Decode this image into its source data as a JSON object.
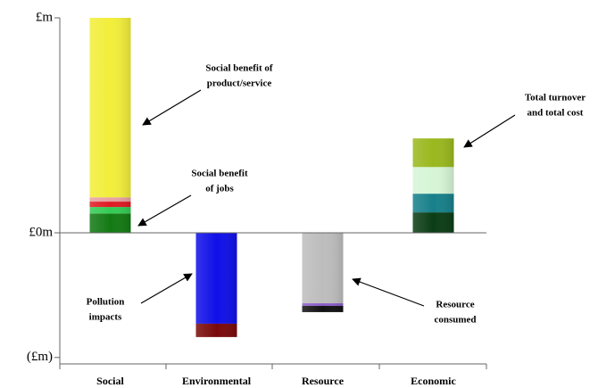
{
  "chart_data": {
    "type": "stacked-bar",
    "categories": [
      "Social",
      "Environmental",
      "Resource",
      "Economic"
    ],
    "segments": [
      [
        {
          "value": 0.9,
          "color": "#137a13"
        },
        {
          "value": 0.3,
          "color": "#33cc55"
        },
        {
          "value": 0.25,
          "color": "#e01b24"
        },
        {
          "value": 0.2,
          "color": "#e8a0a0"
        },
        {
          "value": 8.35,
          "color": "#f2ee3a"
        }
      ],
      [
        {
          "value": -4.23,
          "color": "#1010e8"
        },
        {
          "value": -0.62,
          "color": "#7a0a0a"
        }
      ],
      [
        {
          "value": -3.28,
          "color": "#bdbdbd"
        },
        {
          "value": -0.12,
          "color": "#8a5cc8"
        },
        {
          "value": -0.29,
          "color": "#111111"
        }
      ],
      [
        {
          "value": 0.95,
          "color": "#0b3d16"
        },
        {
          "value": 0.87,
          "color": "#17808a"
        },
        {
          "value": 1.24,
          "color": "#d6f5d6"
        },
        {
          "value": 1.33,
          "color": "#9ab81e"
        }
      ]
    ],
    "ylim": [
      -6.1,
      10
    ],
    "yticks": [
      {
        "value": 10,
        "label": "£m"
      },
      {
        "value": 0,
        "label": "£0m"
      },
      {
        "value": -5.8,
        "label": "(£m)"
      }
    ],
    "annotations": [
      {
        "lines": [
          "Social benefit of",
          "product/service"
        ]
      },
      {
        "lines": [
          "Social benefit",
          "of jobs"
        ]
      },
      {
        "lines": [
          "Total turnover",
          "and total cost"
        ]
      },
      {
        "lines": [
          "Pollution",
          "impacts"
        ]
      },
      {
        "lines": [
          "Resource",
          "consumed"
        ]
      }
    ]
  }
}
